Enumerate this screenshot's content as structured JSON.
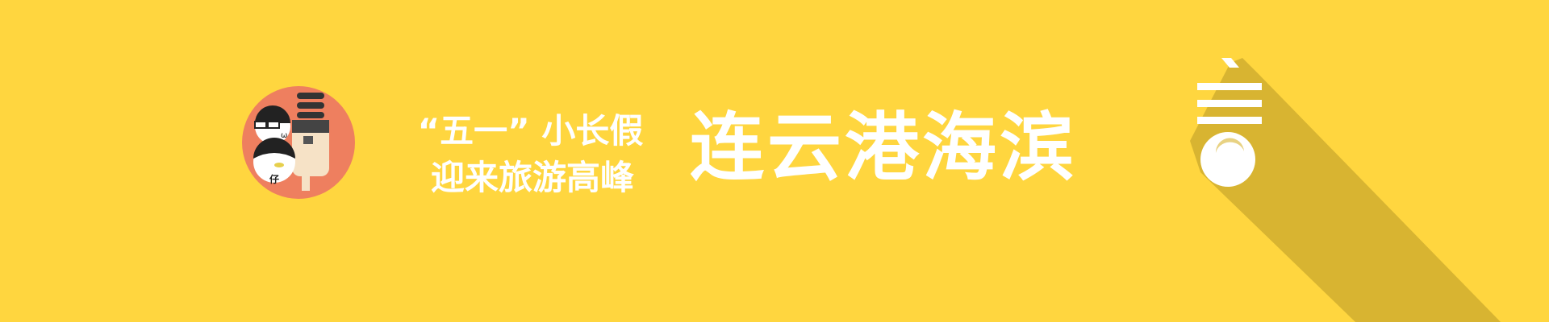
{
  "banner": {
    "background_color": "#ffd63f",
    "shadow_color": "#d8b431",
    "badge_color": "#ee7f5f",
    "tagline_line1": "“五一” 小长假",
    "tagline_line2": "迎来旅游高峰",
    "headline": "连云港海滨",
    "badge_glyph_eye": "ω",
    "badge_glyph_zai": "仔",
    "icons": {
      "badge": "cartoon-faces-badge-icon",
      "menu": "hamburger-menu-icon",
      "circle": "white-circle-icon"
    }
  }
}
